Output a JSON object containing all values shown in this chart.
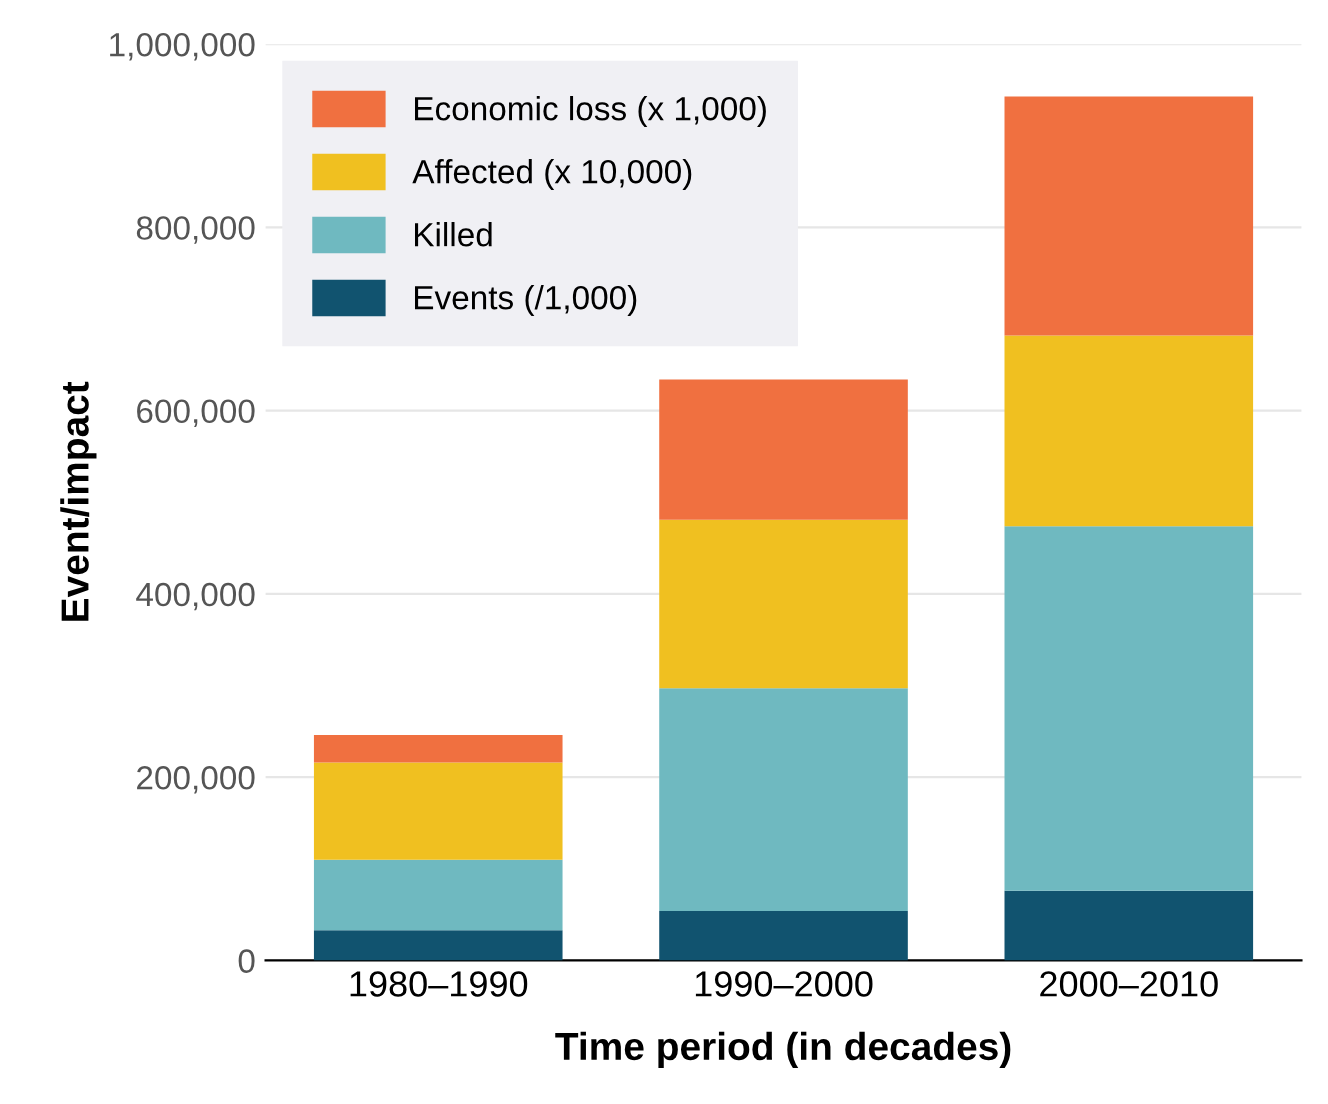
{
  "chart_data": {
    "type": "bar",
    "stacked": true,
    "xlabel": "Time period (in decades)",
    "ylabel": "Event/impact",
    "categories": [
      "1980–1990",
      "1990–2000",
      "2000–2010"
    ],
    "series": [
      {
        "name": "Events (/1,000)",
        "color": "#11536f",
        "values": [
          33000,
          54000,
          76000
        ]
      },
      {
        "name": "Killed",
        "color": "#6fb9c0",
        "values": [
          77000,
          243000,
          398000
        ]
      },
      {
        "name": "Affected (x 10,000)",
        "color": "#f0c020",
        "values": [
          106000,
          184000,
          208000
        ]
      },
      {
        "name": "Economic loss (x 1,000)",
        "color": "#f07040",
        "values": [
          30000,
          153000,
          261000
        ]
      }
    ],
    "ylim": [
      0,
      1000000
    ],
    "yticks": [
      {
        "value": 0,
        "label": "0"
      },
      {
        "value": 200000,
        "label": "200,000"
      },
      {
        "value": 400000,
        "label": "400,000"
      },
      {
        "value": 600000,
        "label": "600,000"
      },
      {
        "value": 800000,
        "label": "800,000"
      },
      {
        "value": 1000000,
        "label": "1,000,000"
      }
    ],
    "grid": "y",
    "legend": "top left"
  }
}
